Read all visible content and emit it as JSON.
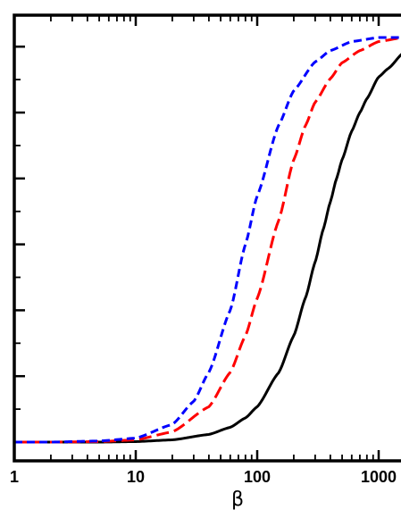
{
  "chart_data": {
    "type": "line",
    "title": "",
    "xlabel": "β",
    "ylabel": "",
    "x_scale": "log",
    "xlim": [
      1,
      1600
    ],
    "ylim": [
      0,
      1
    ],
    "grid": false,
    "x_ticks": [
      {
        "value": 1,
        "label": "1"
      },
      {
        "value": 10,
        "label": "10"
      },
      {
        "value": 100,
        "label": "100"
      },
      {
        "value": 1000,
        "label": "1000"
      }
    ],
    "y_major_ticks": [
      0,
      0.1629,
      0.3258,
      0.4887,
      0.6516,
      0.8145,
      0.9774
    ],
    "y_tick_labels_shown": false,
    "series": [
      {
        "color": "#000000",
        "dash": "solid",
        "x": [
          1,
          2,
          5,
          10,
          20,
          40,
          60,
          80,
          100,
          150,
          200,
          250,
          300,
          350,
          400,
          450,
          500,
          600,
          700,
          800,
          1000,
          1200,
          1600
        ],
        "y": [
          0,
          0,
          0,
          0.0012,
          0.0055,
          0.0189,
          0.0365,
          0.0597,
          0.0873,
          0.1714,
          0.2628,
          0.3571,
          0.4452,
          0.5264,
          0.5939,
          0.6516,
          0.6981,
          0.7685,
          0.8145,
          0.8489,
          0.9026,
          0.9235,
          0.9624
        ]
      },
      {
        "color": "#ff0000",
        "dash": "long-dash",
        "x": [
          1,
          2,
          5,
          10,
          20,
          40,
          60,
          80,
          100,
          150,
          200,
          250,
          300,
          400,
          500,
          700,
          1000,
          1600
        ],
        "y": [
          0,
          0,
          0.0012,
          0.0055,
          0.0251,
          0.0873,
          0.1724,
          0.2628,
          0.3552,
          0.5473,
          0.6981,
          0.7829,
          0.8402,
          0.8984,
          0.9379,
          0.9676,
          0.99,
          1.0
        ]
      },
      {
        "color": "#0000ff",
        "dash": "short-dash",
        "x": [
          1,
          2,
          5,
          10,
          20,
          30,
          40,
          60,
          80,
          100,
          150,
          200,
          300,
          400,
          600,
          1000,
          1600
        ],
        "y": [
          0,
          0,
          0.0027,
          0.0097,
          0.0436,
          0.1006,
          0.1724,
          0.3258,
          0.4887,
          0.6086,
          0.7829,
          0.8687,
          0.9399,
          0.9676,
          0.99,
          1.0,
          1.0
        ]
      }
    ]
  }
}
